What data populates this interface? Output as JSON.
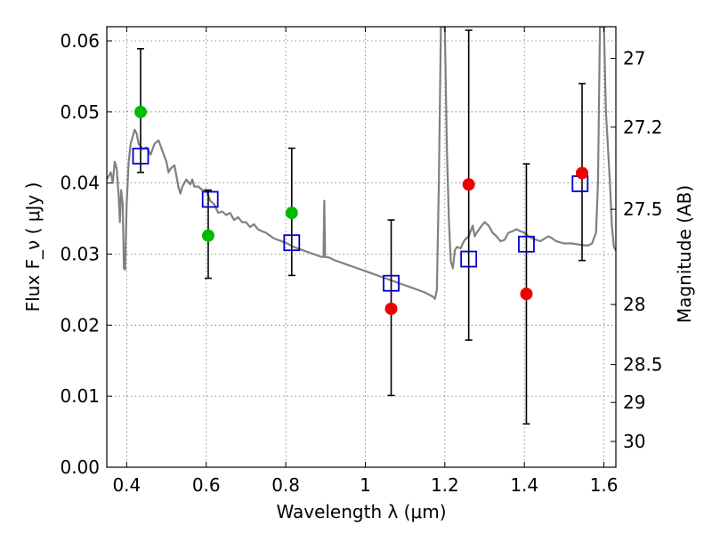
{
  "chart_data": {
    "type": "scatter",
    "title": "",
    "xlabel": "Wavelength  λ (μm)",
    "ylabel": "Flux  F_ν  ( μJy )",
    "ylabel_right": "Magnitude (AB)",
    "xlim": [
      0.35,
      1.63
    ],
    "ylim": [
      0.0,
      0.062
    ],
    "grid": true,
    "x_ticks": [
      0.4,
      0.6,
      0.8,
      1.0,
      1.2,
      1.4,
      1.6
    ],
    "x_tick_labels": [
      "0.4",
      "0.6",
      "0.8",
      "1",
      "1.2",
      "1.4",
      "1.6"
    ],
    "y_ticks": [
      0.0,
      0.01,
      0.02,
      0.03,
      0.04,
      0.05,
      0.06
    ],
    "y_tick_labels": [
      "0.00",
      "0.01",
      "0.02",
      "0.03",
      "0.04",
      "0.05",
      "0.06"
    ],
    "right_ticks": [
      {
        "mag": 27,
        "label": "27"
      },
      {
        "mag": 27.2,
        "label": "27.2"
      },
      {
        "mag": 27.5,
        "label": "27.5"
      },
      {
        "mag": 28,
        "label": "28"
      },
      {
        "mag": 28.5,
        "label": "28.5"
      },
      {
        "mag": 29,
        "label": "29"
      },
      {
        "mag": 30,
        "label": "30"
      }
    ],
    "colors": {
      "model": "#808080",
      "model_band": "#0000cc",
      "green_obs": "#00bb00",
      "red_obs": "#ee0000",
      "errorbar": "#000000"
    },
    "series": [
      {
        "kind": "line",
        "points": [
          [
            0.35,
            0.0405
          ],
          [
            0.36,
            0.0415
          ],
          [
            0.365,
            0.04
          ],
          [
            0.37,
            0.043
          ],
          [
            0.375,
            0.042
          ],
          [
            0.38,
            0.038
          ],
          [
            0.383,
            0.0345
          ],
          [
            0.386,
            0.039
          ],
          [
            0.39,
            0.037
          ],
          [
            0.393,
            0.028
          ],
          [
            0.396,
            0.0278
          ],
          [
            0.4,
            0.037
          ],
          [
            0.405,
            0.043
          ],
          [
            0.41,
            0.0455
          ],
          [
            0.42,
            0.0475
          ],
          [
            0.425,
            0.047
          ],
          [
            0.43,
            0.0455
          ],
          [
            0.44,
            0.0448
          ],
          [
            0.45,
            0.045
          ],
          [
            0.46,
            0.044
          ],
          [
            0.47,
            0.0455
          ],
          [
            0.48,
            0.046
          ],
          [
            0.49,
            0.0445
          ],
          [
            0.5,
            0.043
          ],
          [
            0.505,
            0.0415
          ],
          [
            0.51,
            0.042
          ],
          [
            0.52,
            0.0425
          ],
          [
            0.53,
            0.0395
          ],
          [
            0.535,
            0.0385
          ],
          [
            0.54,
            0.0395
          ],
          [
            0.55,
            0.0405
          ],
          [
            0.56,
            0.0398
          ],
          [
            0.565,
            0.0405
          ],
          [
            0.57,
            0.0395
          ],
          [
            0.58,
            0.0395
          ],
          [
            0.59,
            0.039
          ],
          [
            0.6,
            0.039
          ],
          [
            0.61,
            0.0375
          ],
          [
            0.62,
            0.037
          ],
          [
            0.63,
            0.0358
          ],
          [
            0.64,
            0.036
          ],
          [
            0.65,
            0.0355
          ],
          [
            0.66,
            0.0358
          ],
          [
            0.67,
            0.0348
          ],
          [
            0.68,
            0.0352
          ],
          [
            0.69,
            0.0345
          ],
          [
            0.7,
            0.0345
          ],
          [
            0.71,
            0.0338
          ],
          [
            0.72,
            0.0342
          ],
          [
            0.73,
            0.0335
          ],
          [
            0.74,
            0.0332
          ],
          [
            0.75,
            0.033
          ],
          [
            0.76,
            0.0326
          ],
          [
            0.77,
            0.0322
          ],
          [
            0.78,
            0.032
          ],
          [
            0.79,
            0.0318
          ],
          [
            0.8,
            0.0316
          ],
          [
            0.81,
            0.0313
          ],
          [
            0.82,
            0.031
          ],
          [
            0.83,
            0.0308
          ],
          [
            0.84,
            0.0306
          ],
          [
            0.85,
            0.0304
          ],
          [
            0.86,
            0.0302
          ],
          [
            0.87,
            0.03
          ],
          [
            0.88,
            0.0298
          ],
          [
            0.89,
            0.0296
          ],
          [
            0.895,
            0.0296
          ],
          [
            0.897,
            0.0375
          ],
          [
            0.899,
            0.0296
          ],
          [
            0.91,
            0.0295
          ],
          [
            0.92,
            0.0292
          ],
          [
            0.93,
            0.029
          ],
          [
            0.95,
            0.0286
          ],
          [
            0.97,
            0.0282
          ],
          [
            0.99,
            0.0278
          ],
          [
            1.01,
            0.0274
          ],
          [
            1.03,
            0.027
          ],
          [
            1.05,
            0.0266
          ],
          [
            1.07,
            0.0262
          ],
          [
            1.09,
            0.0258
          ],
          [
            1.11,
            0.0254
          ],
          [
            1.13,
            0.025
          ],
          [
            1.15,
            0.0246
          ],
          [
            1.17,
            0.024
          ],
          [
            1.175,
            0.0237
          ],
          [
            1.18,
            0.025
          ],
          [
            1.185,
            0.04
          ],
          [
            1.19,
            0.062
          ],
          [
            1.2,
            0.062
          ],
          [
            1.205,
            0.045
          ],
          [
            1.21,
            0.035
          ],
          [
            1.215,
            0.029
          ],
          [
            1.22,
            0.028
          ],
          [
            1.225,
            0.0305
          ],
          [
            1.23,
            0.031
          ],
          [
            1.24,
            0.0308
          ],
          [
            1.245,
            0.0315
          ],
          [
            1.25,
            0.032
          ],
          [
            1.26,
            0.0325
          ],
          [
            1.27,
            0.034
          ],
          [
            1.275,
            0.0325
          ],
          [
            1.28,
            0.033
          ],
          [
            1.29,
            0.0338
          ],
          [
            1.3,
            0.0345
          ],
          [
            1.31,
            0.034
          ],
          [
            1.32,
            0.033
          ],
          [
            1.33,
            0.0325
          ],
          [
            1.34,
            0.0318
          ],
          [
            1.35,
            0.032
          ],
          [
            1.36,
            0.033
          ],
          [
            1.37,
            0.0332
          ],
          [
            1.38,
            0.0335
          ],
          [
            1.39,
            0.0332
          ],
          [
            1.4,
            0.033
          ],
          [
            1.41,
            0.0325
          ],
          [
            1.42,
            0.0322
          ],
          [
            1.43,
            0.032
          ],
          [
            1.44,
            0.0318
          ],
          [
            1.46,
            0.0325
          ],
          [
            1.47,
            0.0322
          ],
          [
            1.48,
            0.0318
          ],
          [
            1.5,
            0.0315
          ],
          [
            1.52,
            0.0315
          ],
          [
            1.54,
            0.0313
          ],
          [
            1.56,
            0.0312
          ],
          [
            1.57,
            0.0315
          ],
          [
            1.58,
            0.033
          ],
          [
            1.585,
            0.04
          ],
          [
            1.59,
            0.062
          ],
          [
            1.6,
            0.062
          ],
          [
            1.605,
            0.05
          ],
          [
            1.61,
            0.045
          ],
          [
            1.615,
            0.04
          ],
          [
            1.62,
            0.034
          ],
          [
            1.625,
            0.031
          ],
          [
            1.63,
            0.0305
          ]
        ]
      },
      {
        "kind": "model-points",
        "points": [
          [
            0.435,
            0.0438
          ],
          [
            0.61,
            0.0377
          ],
          [
            0.815,
            0.0316
          ],
          [
            1.065,
            0.0259
          ],
          [
            1.26,
            0.0293
          ],
          [
            1.405,
            0.0314
          ],
          [
            1.54,
            0.0399
          ]
        ]
      },
      {
        "kind": "observed-green",
        "points": [
          [
            0.435,
            0.05
          ],
          [
            0.605,
            0.0326
          ],
          [
            0.815,
            0.0358
          ]
        ]
      },
      {
        "kind": "observed-red",
        "points": [
          [
            1.065,
            0.0223
          ],
          [
            1.26,
            0.0398
          ],
          [
            1.405,
            0.0244
          ],
          [
            1.545,
            0.0414
          ]
        ]
      },
      {
        "kind": "errorbars",
        "bars": [
          {
            "x": 0.435,
            "lo": 0.0415,
            "hi": 0.0589
          },
          {
            "x": 0.605,
            "lo": 0.0266,
            "hi": 0.039
          },
          {
            "x": 0.815,
            "lo": 0.027,
            "hi": 0.0449
          },
          {
            "x": 1.065,
            "lo": 0.0101,
            "hi": 0.0348
          },
          {
            "x": 1.26,
            "lo": 0.0179,
            "hi": 0.0615
          },
          {
            "x": 1.405,
            "lo": 0.0061,
            "hi": 0.0427
          },
          {
            "x": 1.545,
            "lo": 0.0291,
            "hi": 0.054
          }
        ]
      }
    ]
  }
}
